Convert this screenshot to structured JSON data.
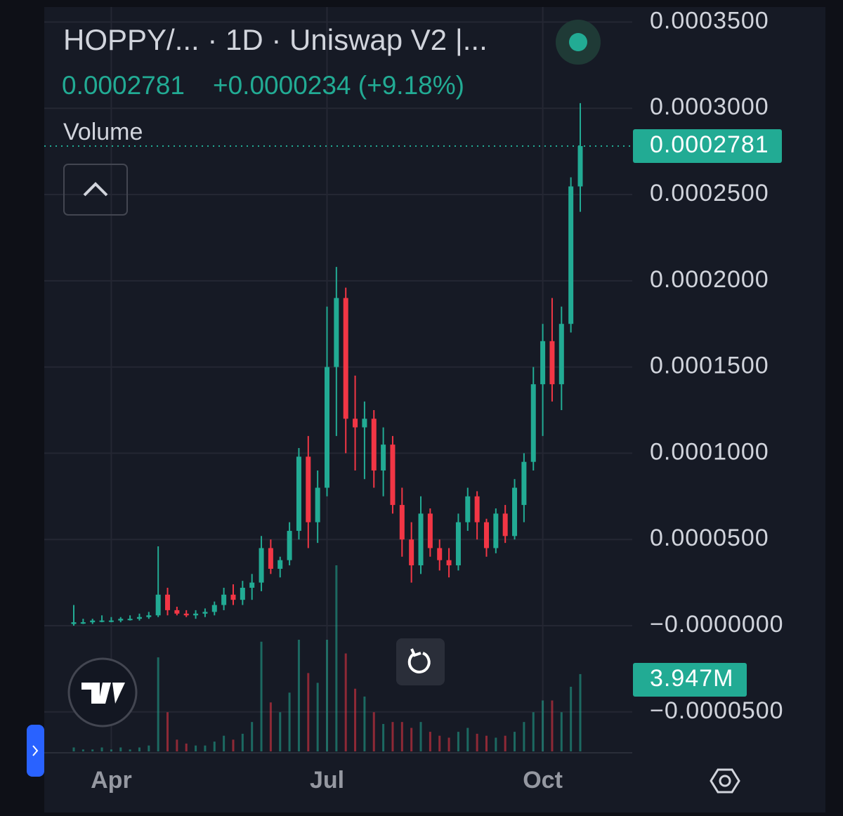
{
  "header": {
    "title": "HOPPY/...  · 1D · Uniswap V2 |...",
    "price": "0.0002781",
    "change": "+0.0000234 (+9.18%)",
    "volume_label": "Volume"
  },
  "chart_data": {
    "type": "candlestick",
    "up_color": "#22ab94",
    "down_color": "#f23645",
    "grid": true,
    "categories": [
      null,
      null,
      null,
      null,
      "Apr",
      null,
      null,
      null,
      null,
      null,
      null,
      null,
      null,
      null,
      null,
      null,
      null,
      null,
      null,
      null,
      null,
      null,
      null,
      null,
      null,
      null,
      null,
      "Jul",
      null,
      null,
      null,
      null,
      null,
      null,
      null,
      null,
      null,
      null,
      null,
      null,
      null,
      null,
      null,
      null,
      null,
      null,
      null,
      null,
      null,
      null,
      "Oct",
      null,
      null,
      null,
      null
    ],
    "open": [
      1e-06,
      2e-06,
      2e-06,
      3e-06,
      3e-06,
      3e-06,
      4e-06,
      4e-06,
      5e-06,
      6e-06,
      1.8e-05,
      9e-06,
      7e-06,
      6e-06,
      7e-06,
      8e-06,
      1.2e-05,
      1.8e-05,
      1.5e-05,
      2.2e-05,
      2.5e-05,
      4.5e-05,
      3.3e-05,
      3.8e-05,
      5.5e-05,
      9.8e-05,
      6e-05,
      8e-05,
      0.00015,
      0.00019,
      0.00012,
      0.000115,
      0.00012,
      9e-05,
      0.000105,
      7e-05,
      5e-05,
      3.5e-05,
      6.5e-05,
      4.5e-05,
      3.8e-05,
      3.5e-05,
      6e-05,
      7.5e-05,
      6e-05,
      4.5e-05,
      6.5e-05,
      5.2e-05,
      7e-05,
      9.5e-05,
      0.00014,
      0.000165,
      0.00014,
      0.000175,
      0.0002547
    ],
    "high": [
      1.2e-05,
      4e-06,
      4e-06,
      6e-06,
      5e-06,
      5e-06,
      6e-06,
      7e-06,
      8e-06,
      4.6e-05,
      2.2e-05,
      1.1e-05,
      9e-06,
      9e-06,
      1e-05,
      1.4e-05,
      2.2e-05,
      2.4e-05,
      2.6e-05,
      3e-05,
      5.2e-05,
      5e-05,
      4e-05,
      6e-05,
      0.000103,
      0.00011,
      9e-05,
      0.000185,
      0.000208,
      0.000196,
      0.000145,
      0.00013,
      0.000125,
      0.000115,
      0.00011,
      8e-05,
      6e-05,
      7.5e-05,
      6.8e-05,
      5e-05,
      4.5e-05,
      6.5e-05,
      8e-05,
      7.8e-05,
      6.2e-05,
      6.8e-05,
      7e-05,
      8.5e-05,
      0.0001,
      0.00015,
      0.000175,
      0.00019,
      0.000185,
      0.00026,
      0.000303
    ],
    "low": [
      0,
      1e-06,
      1e-06,
      2e-06,
      2e-06,
      2e-06,
      3e-06,
      3e-06,
      4e-06,
      5e-06,
      6e-06,
      6e-06,
      5e-06,
      4e-06,
      5e-06,
      6e-06,
      9e-06,
      1.2e-05,
      1.2e-05,
      1.5e-05,
      2e-05,
      3e-05,
      2.8e-05,
      3.5e-05,
      5e-05,
      4.5e-05,
      4.8e-05,
      7.5e-05,
      0.00011,
      0.0001,
      9e-05,
      8.5e-05,
      8e-05,
      7.5e-05,
      6.5e-05,
      4e-05,
      2.5e-05,
      3e-05,
      4e-05,
      3.2e-05,
      2.8e-05,
      3.2e-05,
      5.5e-05,
      5e-05,
      4e-05,
      4.2e-05,
      4.8e-05,
      5e-05,
      6e-05,
      9e-05,
      0.00011,
      0.00013,
      0.000125,
      0.00017,
      0.00024
    ],
    "close": [
      2e-06,
      2e-06,
      3e-06,
      3e-06,
      3e-06,
      4e-06,
      4e-06,
      5e-06,
      6e-06,
      1.8e-05,
      9e-06,
      7e-06,
      6e-06,
      7e-06,
      8e-06,
      1.2e-05,
      1.8e-05,
      1.5e-05,
      2.2e-05,
      2.5e-05,
      4.5e-05,
      3.3e-05,
      3.8e-05,
      5.5e-05,
      9.8e-05,
      6e-05,
      8e-05,
      0.00015,
      0.00019,
      0.00012,
      0.000115,
      0.00012,
      9e-05,
      0.000105,
      7e-05,
      5e-05,
      3.5e-05,
      6.5e-05,
      4.5e-05,
      3.8e-05,
      3.5e-05,
      6e-05,
      7.5e-05,
      6e-05,
      4.5e-05,
      6.5e-05,
      5.2e-05,
      8e-05,
      9.5e-05,
      0.00014,
      0.000165,
      0.00014,
      0.000175,
      0.0002547,
      0.0002781
    ],
    "volume": [
      200000,
      100000,
      100000,
      200000,
      100000,
      200000,
      100000,
      200000,
      300000,
      4800000,
      2000000,
      600000,
      400000,
      300000,
      300000,
      500000,
      800000,
      600000,
      900000,
      1500000,
      5600000,
      2500000,
      2000000,
      3000000,
      5700000,
      4000000,
      3500000,
      5700000,
      9500000,
      5000000,
      3200000,
      2800000,
      2000000,
      1400000,
      1500000,
      1500000,
      1200000,
      1500000,
      1000000,
      800000,
      700000,
      1000000,
      1200000,
      900000,
      800000,
      700000,
      800000,
      1000000,
      1500000,
      2000000,
      2600000,
      2600000,
      2000000,
      3300000,
      3947000
    ],
    "last_volume": {
      "value": 3947000,
      "label": "3.947M"
    },
    "ylim": [
      -7.288e-05,
      0.00035872
    ],
    "yticks": [
      {
        "value": 0.00035,
        "label": "0.0003500"
      },
      {
        "value": 0.0003,
        "label": "0.0003000"
      },
      {
        "value": 0.00025,
        "label": "0.0002500"
      },
      {
        "value": 0.0002,
        "label": "0.0002000"
      },
      {
        "value": 0.00015,
        "label": "0.0001500"
      },
      {
        "value": 0.0001,
        "label": "0.0001000"
      },
      {
        "value": 5e-05,
        "label": "0.0000500"
      },
      {
        "value": 0,
        "label": "−0.0000000"
      },
      {
        "value": -5e-05,
        "label": "−0.0000500"
      }
    ]
  }
}
